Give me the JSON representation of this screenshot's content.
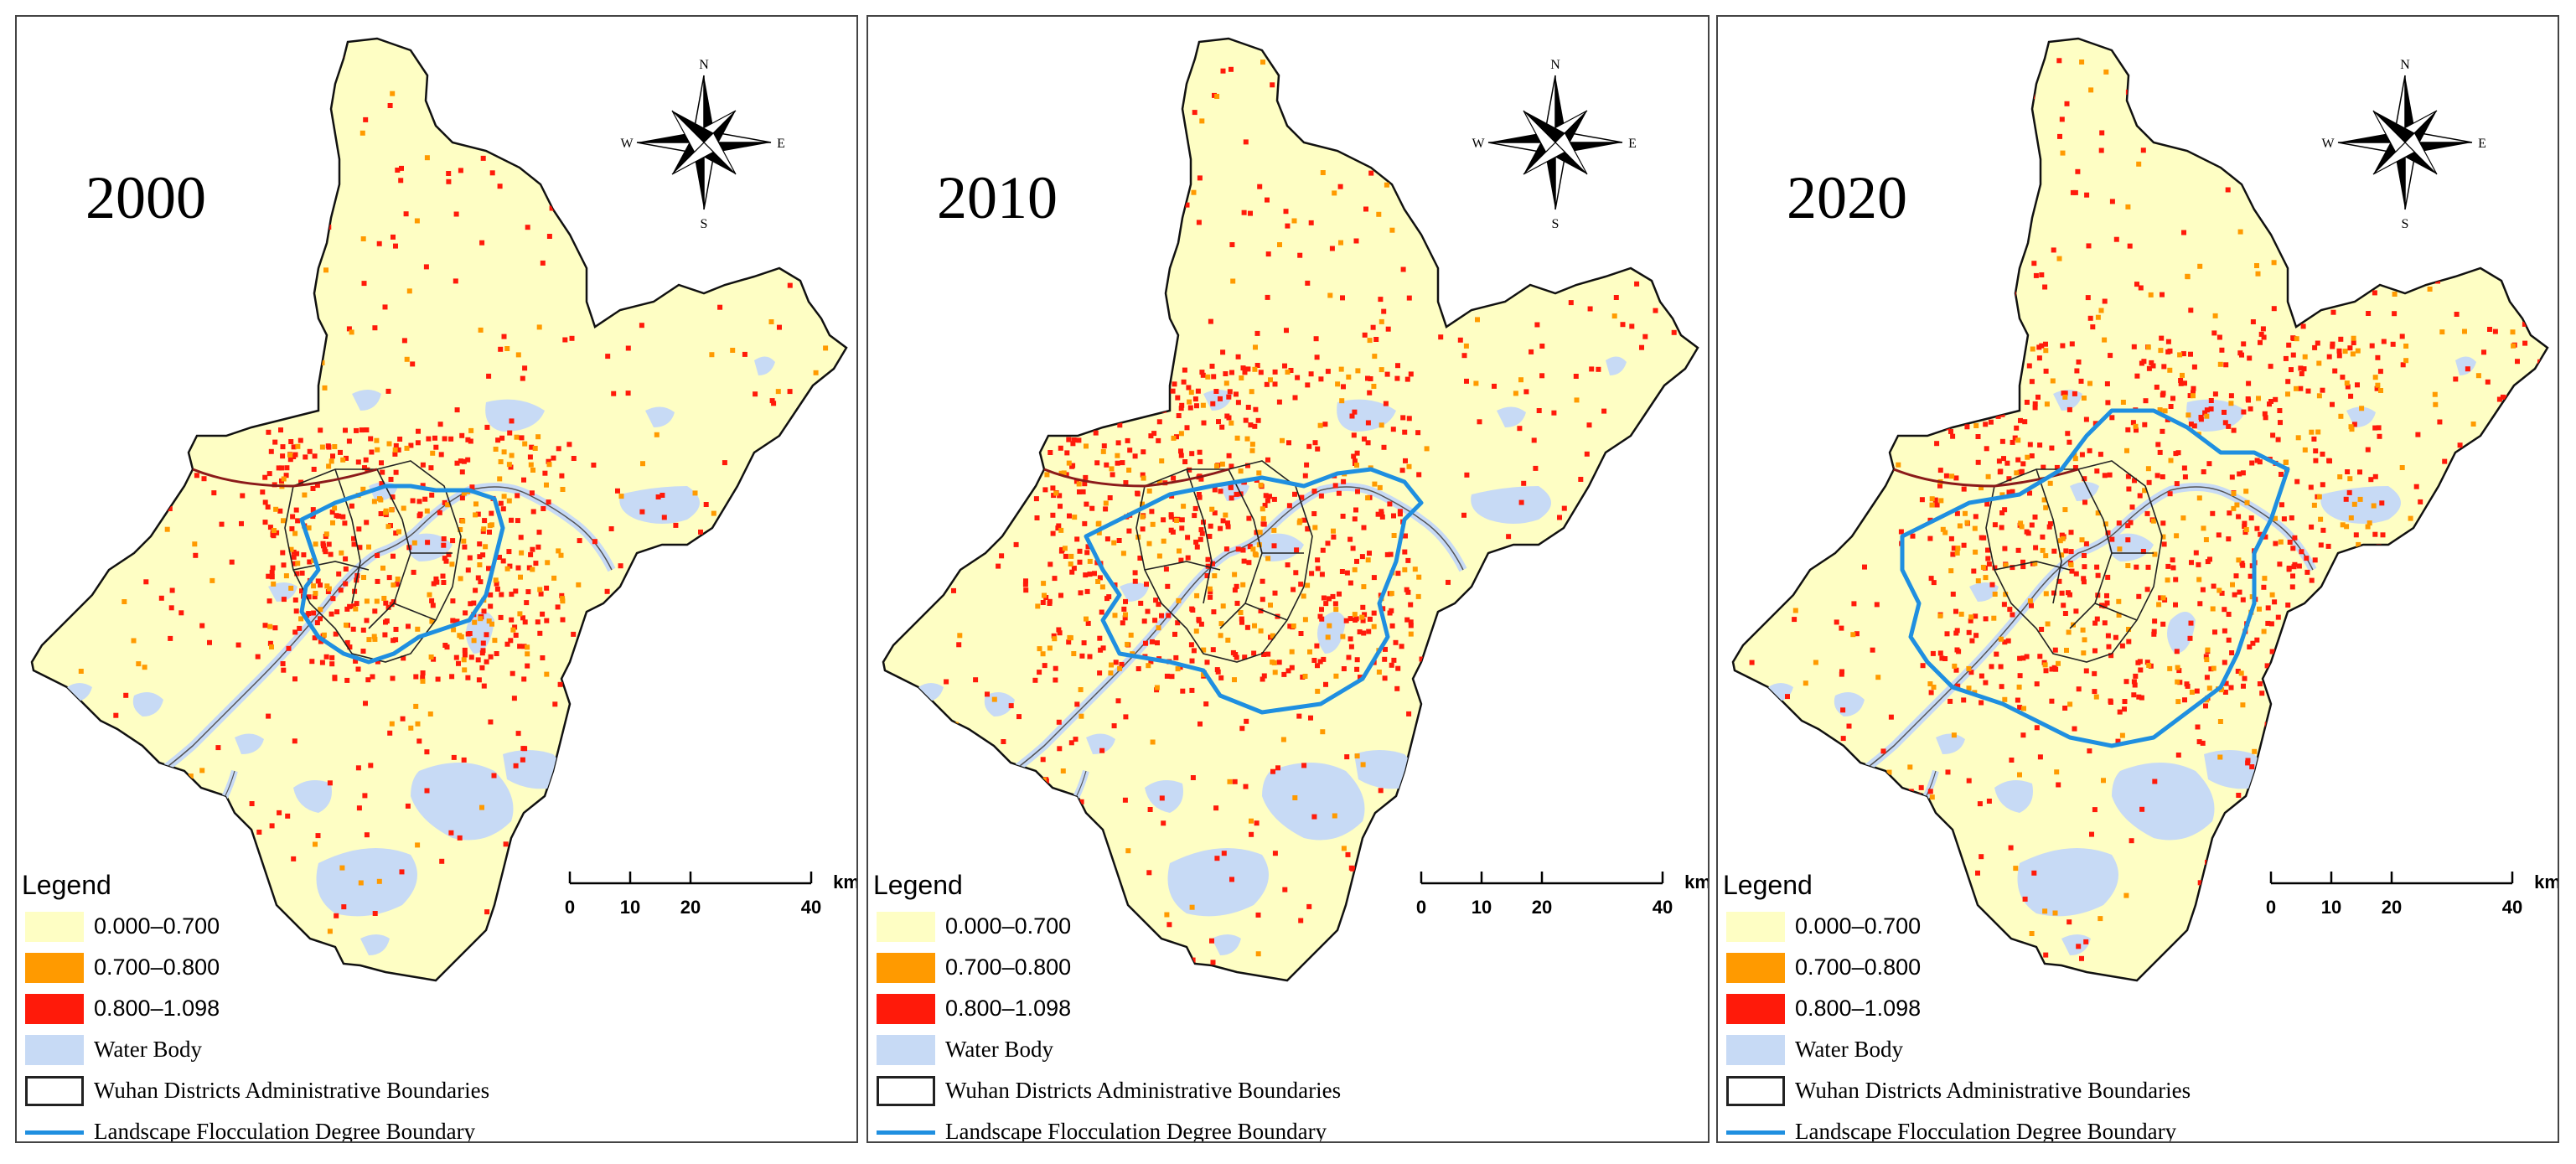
{
  "panels": [
    {
      "year": "2000"
    },
    {
      "year": "2010"
    },
    {
      "year": "2020"
    }
  ],
  "compass": {
    "n": "N",
    "s": "S",
    "e": "E",
    "w": "W",
    "icon": "north-arrow-compass-rose"
  },
  "scale": {
    "ticks": [
      "0",
      "10",
      "20",
      "40"
    ],
    "unit": "km"
  },
  "legend": {
    "title": "Legend",
    "items": [
      {
        "label": "0.000–0.700",
        "color": "#fefec4",
        "kind": "fill"
      },
      {
        "label": "0.700–0.800",
        "color": "#ff9a00",
        "kind": "fill"
      },
      {
        "label": "0.800–1.098",
        "color": "#ff1a0a",
        "kind": "fill"
      },
      {
        "label": "Water Body",
        "color": "#c7daf5",
        "kind": "fill"
      },
      {
        "label": "Wuhan Districts Administrative Boundaries",
        "color": "#222222",
        "kind": "outline"
      },
      {
        "label": "Landscape Flocculation Degree Boundary",
        "color": "#1f8fe0",
        "kind": "line"
      }
    ]
  },
  "colors": {
    "land": "#fefec4",
    "water": "#c7daf5",
    "high": "#ff1a0a",
    "mid": "#ff9a00",
    "boundary": "#1f8fe0",
    "river_edge": "#8b1a1a"
  }
}
